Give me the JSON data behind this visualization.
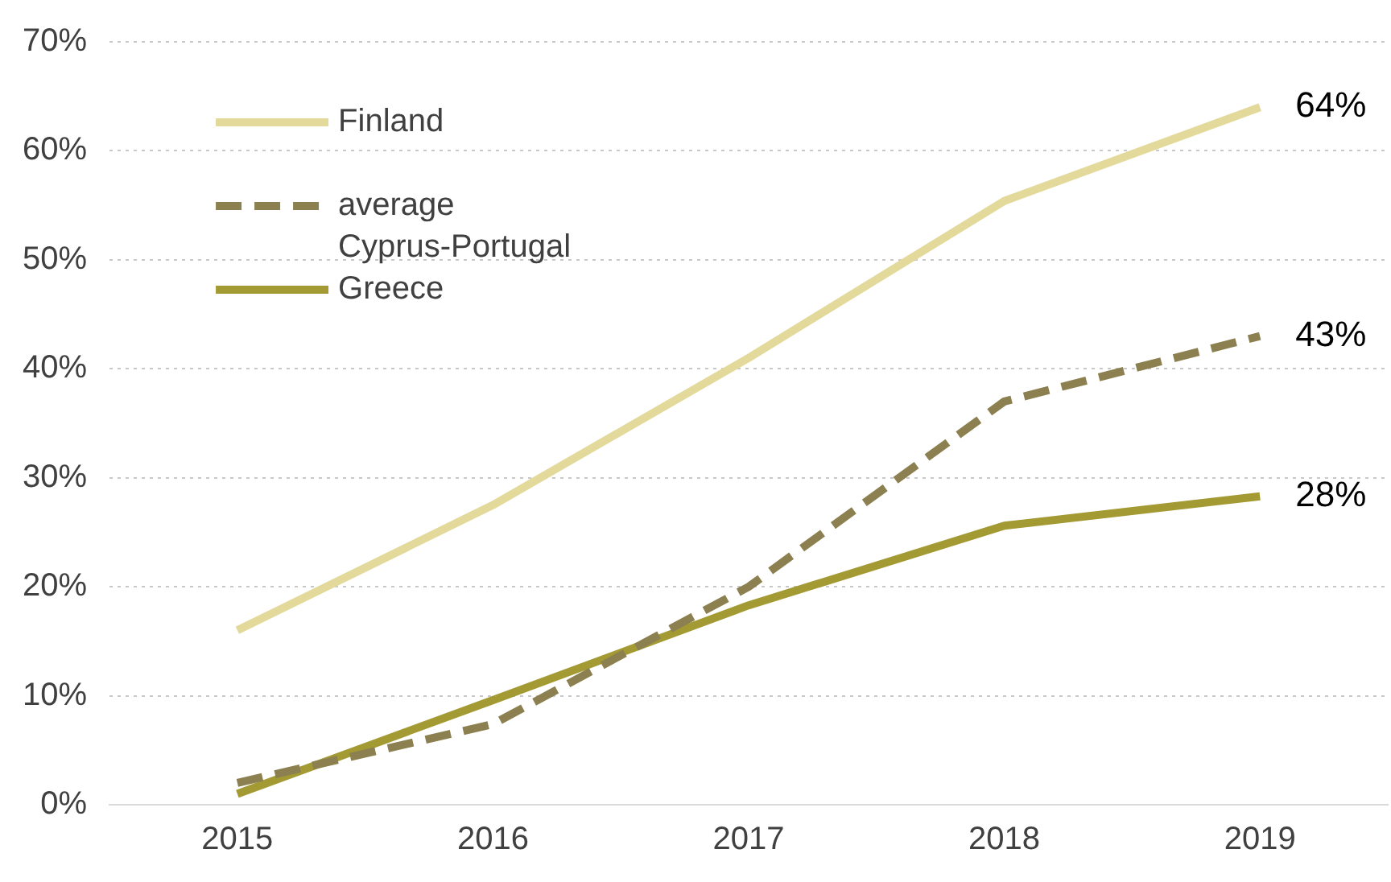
{
  "chart_data": {
    "type": "line",
    "categories": [
      "2015",
      "2016",
      "2017",
      "2018",
      "2019"
    ],
    "series": [
      {
        "name": "Finland",
        "color": "#e2d99b",
        "values": [
          16,
          27.5,
          41,
          55.4,
          64
        ],
        "value_labels": [
          null,
          null,
          null,
          null,
          "64%"
        ],
        "line_style": "solid"
      },
      {
        "name": "average Cyprus-Portugal",
        "color": "#8c8050",
        "values": [
          2,
          7.4,
          20,
          37,
          43
        ],
        "value_labels": [
          null,
          null,
          null,
          null,
          "43%"
        ],
        "line_style": "dashed"
      },
      {
        "name": "Greece",
        "color": "#a39a33",
        "values": [
          1,
          9.6,
          18.3,
          25.6,
          28.3
        ],
        "value_labels": [
          null,
          null,
          null,
          null,
          "28%"
        ],
        "line_style": "solid"
      }
    ],
    "ylim": [
      0,
      70
    ],
    "yticks": [
      {
        "value": 0,
        "label": "0%"
      },
      {
        "value": 10,
        "label": "10%"
      },
      {
        "value": 20,
        "label": "20%"
      },
      {
        "value": 30,
        "label": "30%"
      },
      {
        "value": 40,
        "label": "40%"
      },
      {
        "value": 50,
        "label": "50%"
      },
      {
        "value": 60,
        "label": "60%"
      },
      {
        "value": 70,
        "label": "70%"
      }
    ],
    "grid": "y",
    "legend": "top left",
    "marker": "none"
  }
}
